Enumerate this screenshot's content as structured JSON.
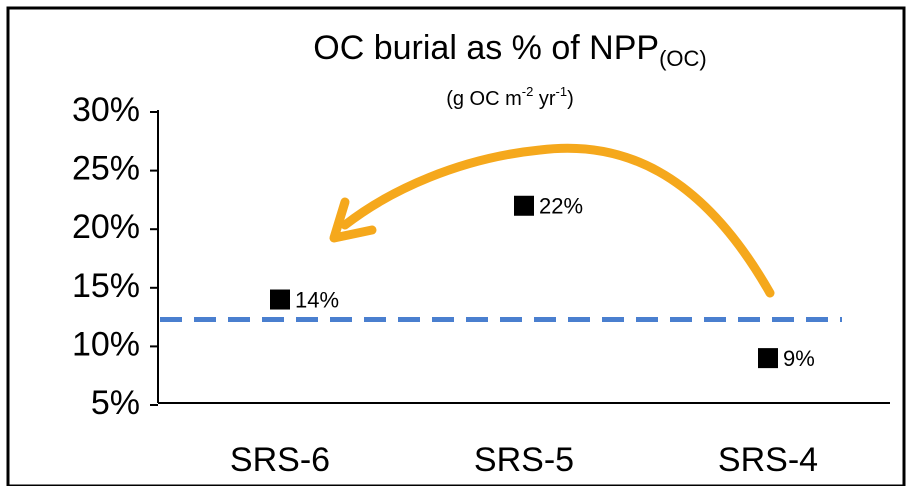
{
  "chart_data": {
    "type": "scatter",
    "title": "OC burial as % of NPP",
    "title_subscript": "(OC)",
    "subtitle": [
      {
        "text": "(g OC m"
      },
      {
        "text": "-2",
        "superscript": true
      },
      {
        "text": " yr"
      },
      {
        "text": "-1",
        "superscript": true
      },
      {
        "text": ")"
      }
    ],
    "categories": [
      "SRS-6",
      "SRS-5",
      "SRS-4"
    ],
    "values": [
      14,
      22,
      9
    ],
    "value_labels": [
      "14%",
      "22%",
      "9%"
    ],
    "color": "#000000",
    "reference_line": {
      "value": 12.3,
      "color": "#4a7fcf"
    },
    "ylim": [
      5,
      30
    ],
    "yticks": [
      {
        "value": 5,
        "label": "5%"
      },
      {
        "value": 10,
        "label": "10%"
      },
      {
        "value": 15,
        "label": "15%"
      },
      {
        "value": 20,
        "label": "20%"
      },
      {
        "value": 25,
        "label": "25%"
      },
      {
        "value": 30,
        "label": "30%"
      }
    ],
    "grid": false
  }
}
